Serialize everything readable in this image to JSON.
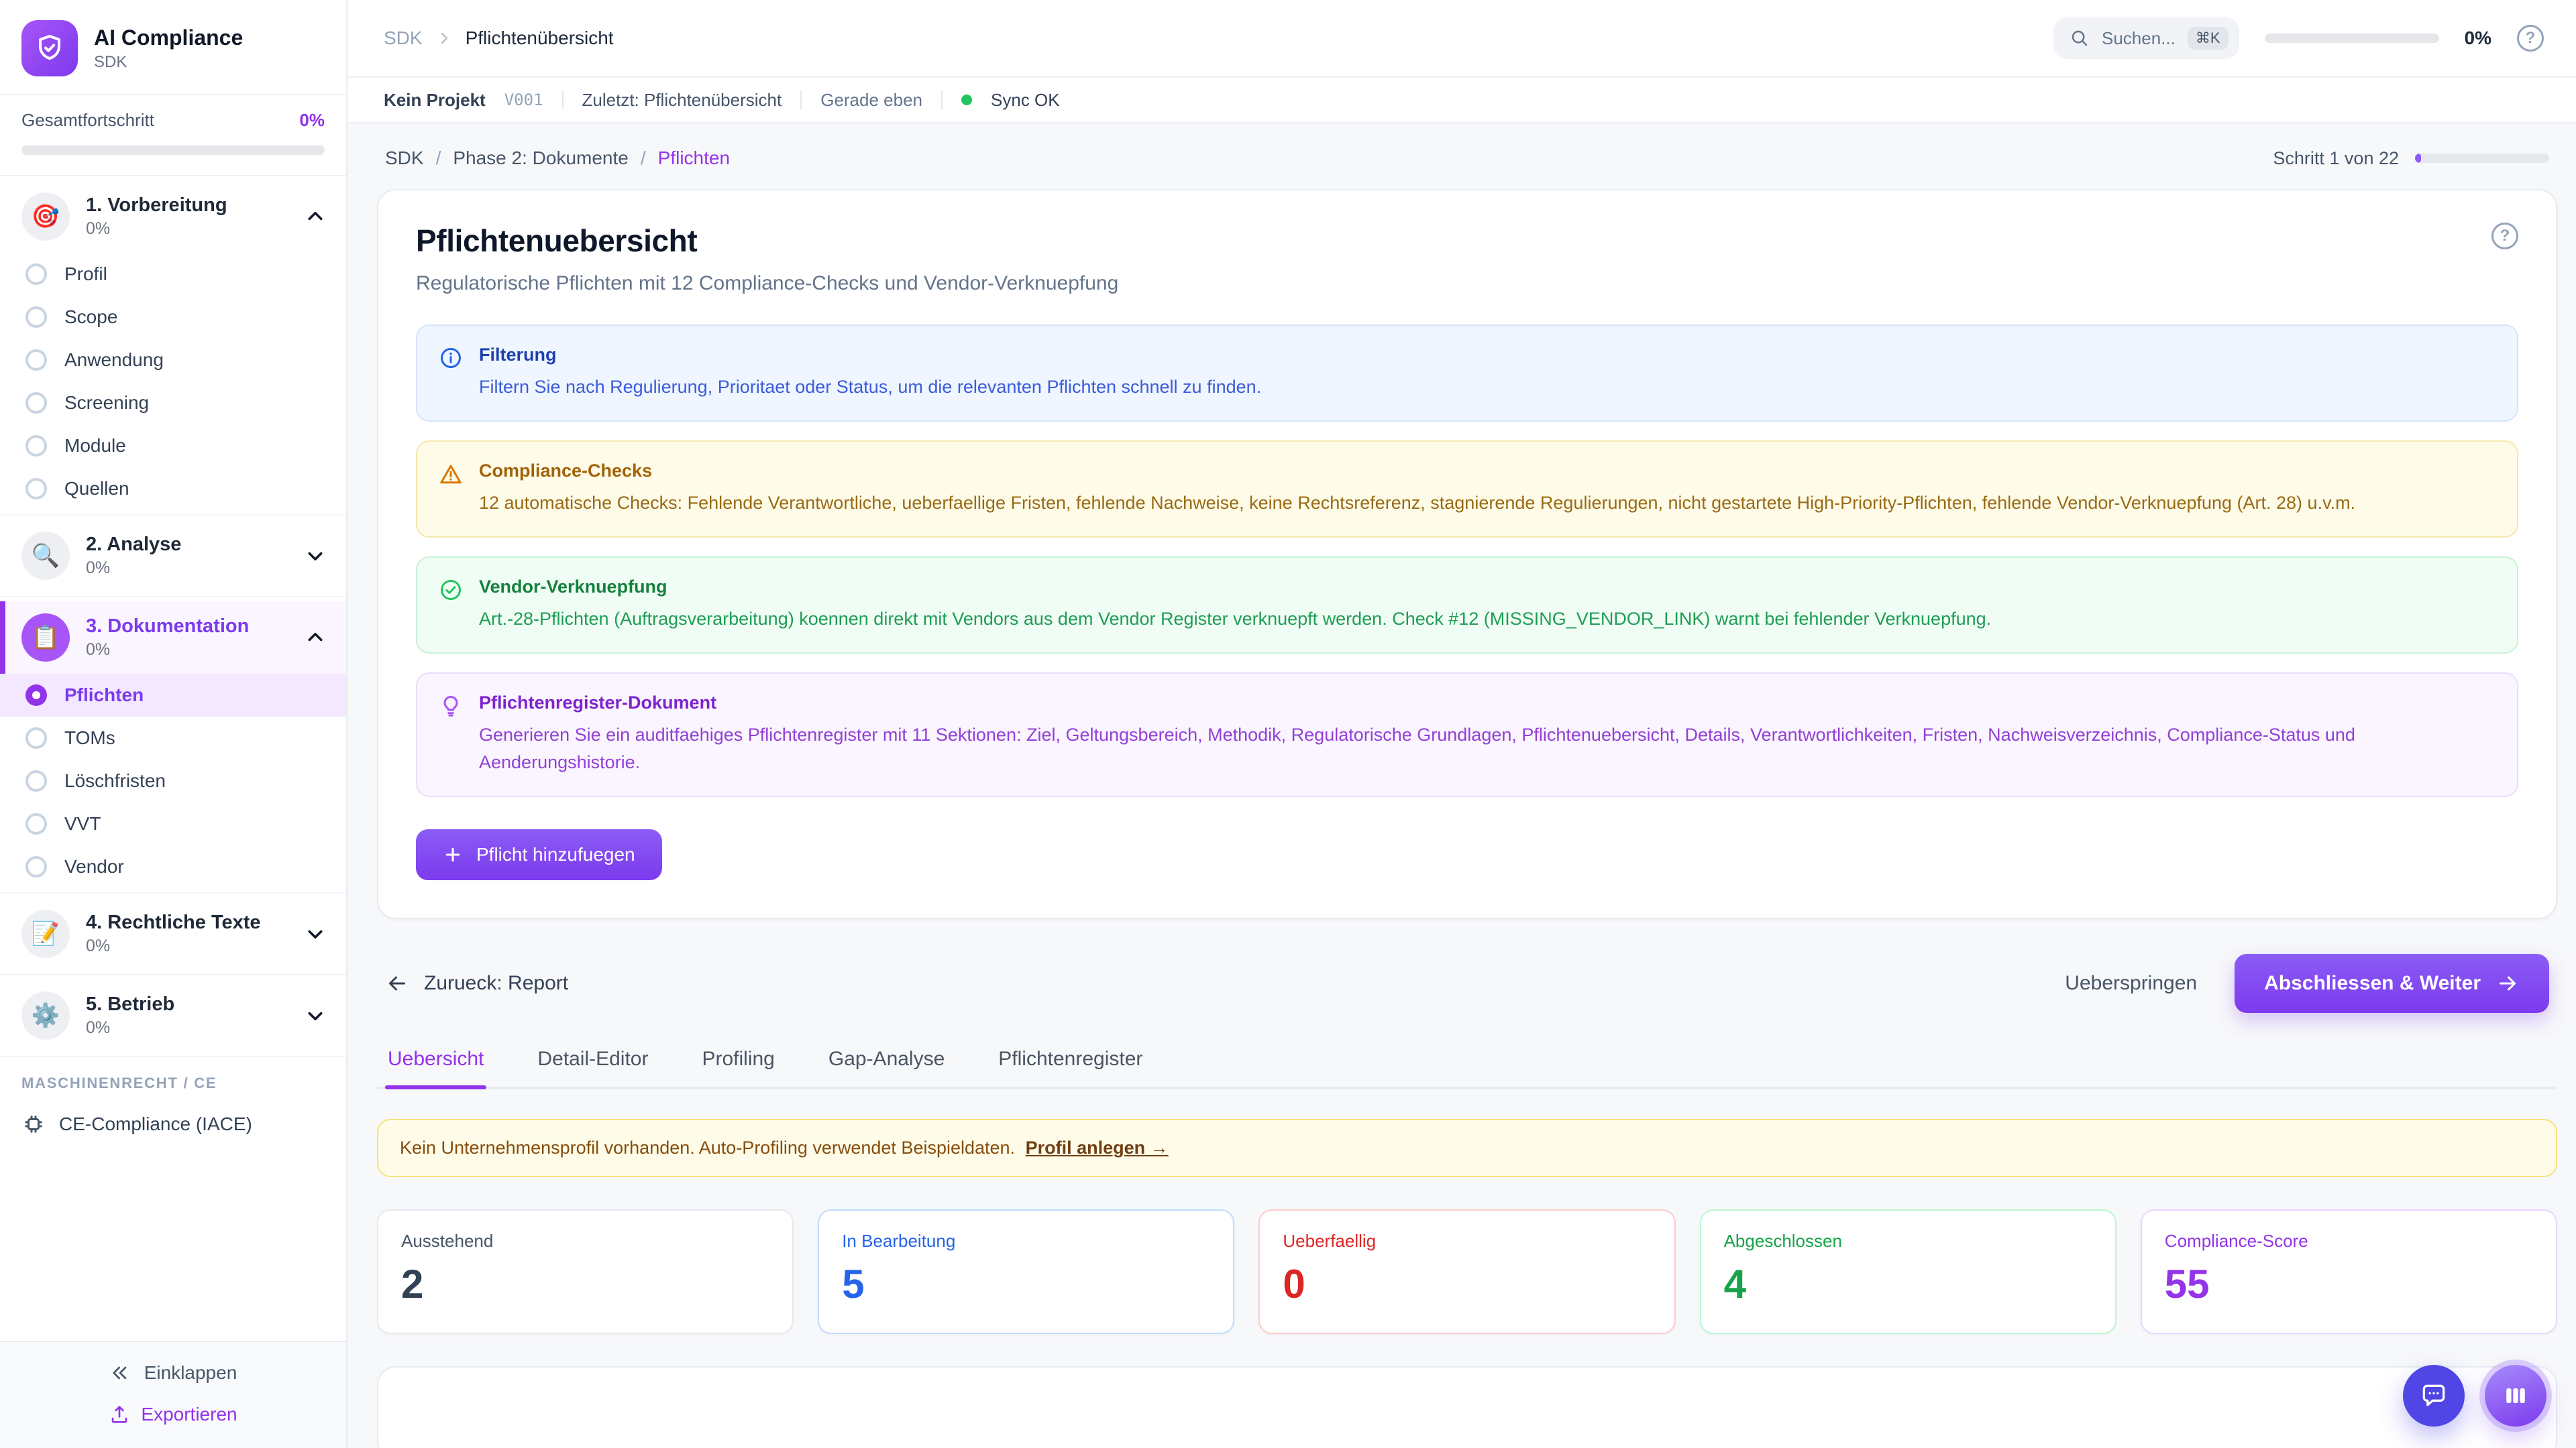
{
  "app": {
    "name": "AI Compliance",
    "subtitle": "SDK"
  },
  "sidebar": {
    "overall_label": "Gesamtfortschritt",
    "overall_value": "0%",
    "sections": [
      {
        "icon": "🎯",
        "label": "1. Vorbereitung",
        "percent": "0%",
        "expanded": true,
        "active": false,
        "items": [
          "Profil",
          "Scope",
          "Anwendung",
          "Screening",
          "Module",
          "Quellen"
        ],
        "active_item": ""
      },
      {
        "icon": "🔍",
        "label": "2. Analyse",
        "percent": "0%",
        "expanded": false,
        "active": false,
        "items": [],
        "active_item": ""
      },
      {
        "icon": "📋",
        "label": "3. Dokumentation",
        "percent": "0%",
        "expanded": true,
        "active": true,
        "items": [
          "Pflichten",
          "TOMs",
          "Löschfristen",
          "VVT",
          "Vendor"
        ],
        "active_item": "Pflichten"
      },
      {
        "icon": "📝",
        "label": "4. Rechtliche Texte",
        "percent": "0%",
        "expanded": false,
        "active": false,
        "items": [],
        "active_item": ""
      },
      {
        "icon": "⚙️",
        "label": "5. Betrieb",
        "percent": "0%",
        "expanded": false,
        "active": false,
        "items": [],
        "active_item": ""
      }
    ],
    "machine_section_label": "MASCHINENRECHT / CE",
    "machine_item": "CE-Compliance (IACE)",
    "collapse_label": "Einklappen",
    "export_label": "Exportieren"
  },
  "topbar": {
    "breadcrumb": [
      "SDK",
      "Pflichtenübersicht"
    ],
    "search_placeholder": "Suchen...",
    "search_shortcut": "⌘K",
    "progress_value": "0%"
  },
  "statusbar": {
    "project": "Kein Projekt",
    "version": "V001",
    "last": "Zuletzt: Pflichtenübersicht",
    "time": "Gerade eben",
    "sync": "Sync OK"
  },
  "pagebar": {
    "breadcrumb": [
      "SDK",
      "Phase 2: Dokumente",
      "Pflichten"
    ],
    "step_label": "Schritt 1 von 22",
    "step_percent": 4.5
  },
  "main": {
    "title": "Pflichtenuebersicht",
    "subtitle": "Regulatorische Pflichten mit 12 Compliance-Checks und Vendor-Verknuepfung",
    "info_boxes": [
      {
        "type": "info",
        "title": "Filterung",
        "text": "Filtern Sie nach Regulierung, Prioritaet oder Status, um die relevanten Pflichten schnell zu finden."
      },
      {
        "type": "warning",
        "title": "Compliance-Checks",
        "text": "12 automatische Checks: Fehlende Verantwortliche, ueberfaellige Fristen, fehlende Nachweise, keine Rechtsreferenz, stagnierende Regulierungen, nicht gestartete High-Priority-Pflichten, fehlende Vendor-Verknuepfung (Art. 28) u.v.m."
      },
      {
        "type": "success",
        "title": "Vendor-Verknuepfung",
        "text": "Art.-28-Pflichten (Auftragsverarbeitung) koennen direkt mit Vendors aus dem Vendor Register verknuepft werden. Check #12 (MISSING_VENDOR_LINK) warnt bei fehlender Verknuepfung."
      },
      {
        "type": "tip",
        "title": "Pflichtenregister-Dokument",
        "text": "Generieren Sie ein auditfaehiges Pflichtenregister mit 11 Sektionen: Ziel, Geltungsbereich, Methodik, Regulatorische Grundlagen, Pflichtenuebersicht, Details, Verantwortlichkeiten, Fristen, Nachweisverzeichnis, Compliance-Status und Aenderungshistorie."
      }
    ],
    "add_button": "Pflicht hinzufuegen",
    "back_label": "Zurueck: Report",
    "skip_label": "Ueberspringen",
    "next_label": "Abschliessen & Weiter",
    "tabs": [
      "Uebersicht",
      "Detail-Editor",
      "Profiling",
      "Gap-Analyse",
      "Pflichtenregister"
    ],
    "active_tab": "Uebersicht",
    "banner": {
      "text": "Kein Unternehmensprofil vorhanden. Auto-Profiling verwendet Beispieldaten.",
      "link": "Profil anlegen →"
    },
    "stats": [
      {
        "label": "Ausstehend",
        "value": "2",
        "color": "slate"
      },
      {
        "label": "In Bearbeitung",
        "value": "5",
        "color": "blue"
      },
      {
        "label": "Ueberfaellig",
        "value": "0",
        "color": "red"
      },
      {
        "label": "Abgeschlossen",
        "value": "4",
        "color": "green"
      },
      {
        "label": "Compliance-Score",
        "value": "55",
        "color": "purple"
      }
    ]
  },
  "colors": {
    "accent": "#7c3aed",
    "accent_light": "#a855f7",
    "sync_ok": "#22c55e",
    "warning": "#d97706",
    "success": "#16a34a",
    "danger": "#dc2626",
    "info": "#2563eb"
  }
}
